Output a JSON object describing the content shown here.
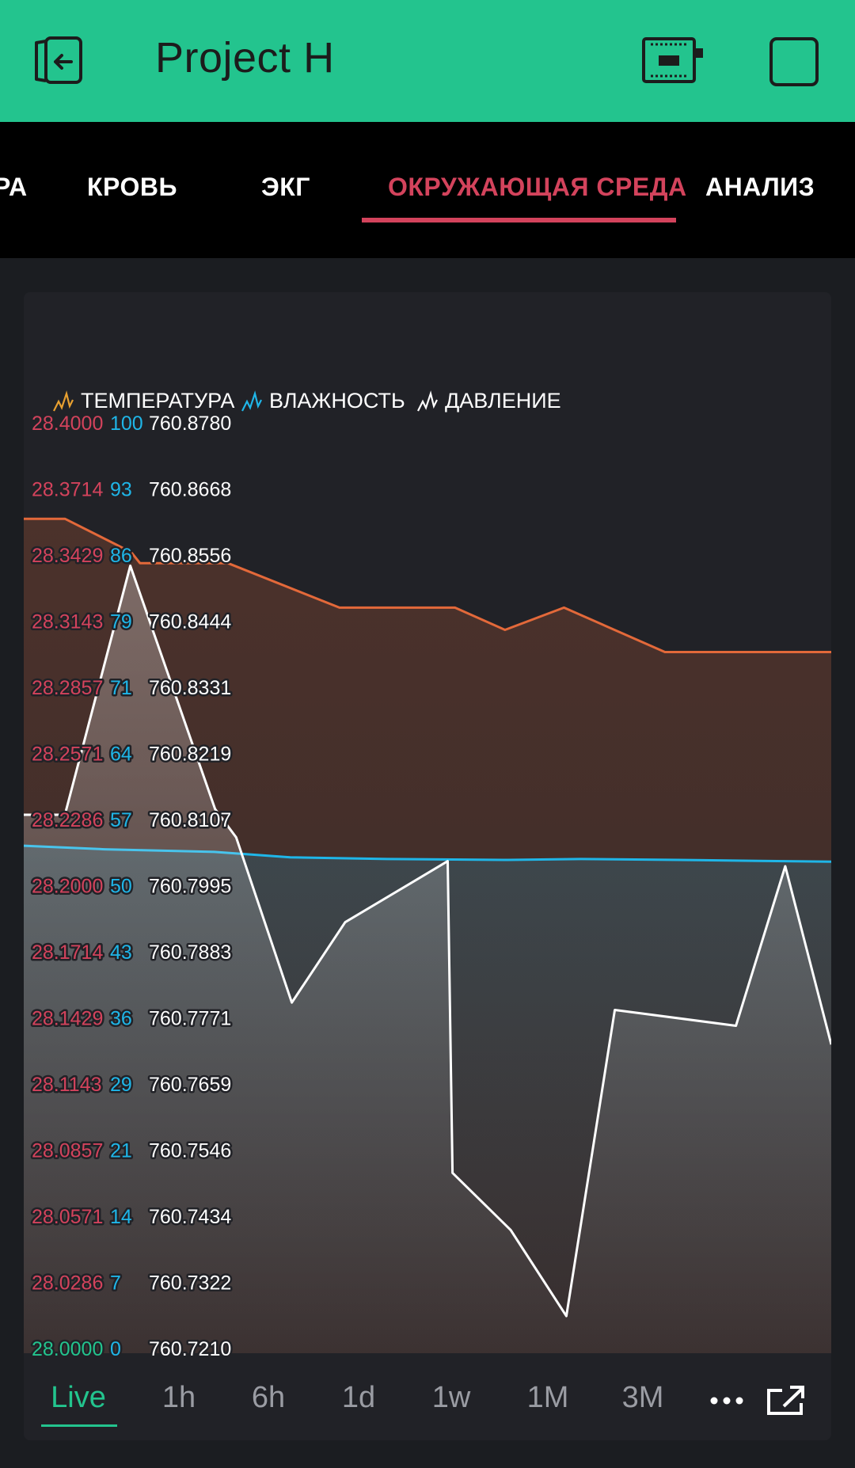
{
  "header": {
    "title": "Project H"
  },
  "tabs": [
    {
      "label": "РА",
      "active": false
    },
    {
      "label": "КРОВЬ",
      "active": false
    },
    {
      "label": "ЭКГ",
      "active": false
    },
    {
      "label": "ОКРУЖАЮЩАЯ СРЕДА",
      "active": true
    },
    {
      "label": "АНАЛИЗ",
      "active": false
    }
  ],
  "colors": {
    "accent": "#23c48e",
    "active_tab": "#d3435c",
    "temperature": "#e3693a",
    "humidity": "#1fb6e8",
    "pressure": "#ffffff"
  },
  "time_ranges": [
    "Live",
    "1h",
    "6h",
    "1d",
    "1w",
    "1M",
    "3M"
  ],
  "selected_range": "Live",
  "icons": {
    "back": "exit-device-icon",
    "device": "board-icon",
    "square": "square-icon",
    "more": "more-dots-icon",
    "expand": "expand-icon"
  },
  "chart_data": {
    "type": "line",
    "legend": [
      "ТЕМПЕРАТУРА",
      "ВЛАЖНОСТЬ",
      "ДАВЛЕНИЕ"
    ],
    "legend_placement": "top-left",
    "grid": false,
    "axes": {
      "temperature": {
        "ticks": [
          "28.4000",
          "28.3714",
          "28.3429",
          "28.3143",
          "28.2857",
          "28.2571",
          "28.2286",
          "28.2000",
          "28.1714",
          "28.1429",
          "28.1143",
          "28.0857",
          "28.0571",
          "28.0286",
          "28.0000"
        ],
        "ylim": [
          28.0,
          28.4
        ]
      },
      "humidity": {
        "ticks": [
          "100",
          "93",
          "86",
          "79",
          "71",
          "64",
          "57",
          "50",
          "43",
          "36",
          "29",
          "21",
          "14",
          "7",
          "0"
        ],
        "ylim": [
          0,
          100
        ]
      },
      "pressure": {
        "ticks": [
          "760.8780",
          "760.8668",
          "760.8556",
          "760.8444",
          "760.8331",
          "760.8219",
          "760.8107",
          "760.7995",
          "760.7883",
          "760.7771",
          "760.7659",
          "760.7546",
          "760.7434",
          "760.7322",
          "760.7210"
        ],
        "ylim": [
          760.721,
          760.878
        ]
      }
    },
    "series": [
      {
        "name": "ТЕМПЕРАТУРА",
        "color": "#e3693a",
        "fill": true,
        "x": [
          0,
          5.1,
          13.3,
          14.4,
          25.3,
          39.1,
          53.4,
          59.6,
          66.9,
          79.4,
          86.3,
          100
        ],
        "values": [
          28.36,
          28.36,
          28.345,
          28.34,
          28.34,
          28.32,
          28.32,
          28.31,
          28.32,
          28.3,
          28.3,
          28.3
        ]
      },
      {
        "name": "ВЛАЖНОСТЬ",
        "color": "#1fb6e8",
        "fill": true,
        "x": [
          0,
          10,
          23.6,
          33,
          45,
          60,
          69,
          81,
          91,
          100
        ],
        "values": [
          53.2,
          52.8,
          52.5,
          51.9,
          51.7,
          51.6,
          51.7,
          51.6,
          51.5,
          51.4
        ]
      },
      {
        "name": "ДАВЛЕНИЕ",
        "color": "#ffffff",
        "fill": true,
        "x": [
          0,
          5.1,
          13.2,
          23.7,
          26.3,
          33.2,
          39.8,
          52.5,
          53.1,
          60.3,
          67.2,
          73.2,
          88.2,
          94.3,
          100
        ],
        "values": [
          760.81,
          760.81,
          760.854,
          760.811,
          760.806,
          760.7768,
          760.791,
          760.8018,
          760.7467,
          760.7366,
          760.7214,
          760.7755,
          760.7727,
          760.8009,
          760.7694
        ]
      }
    ]
  }
}
